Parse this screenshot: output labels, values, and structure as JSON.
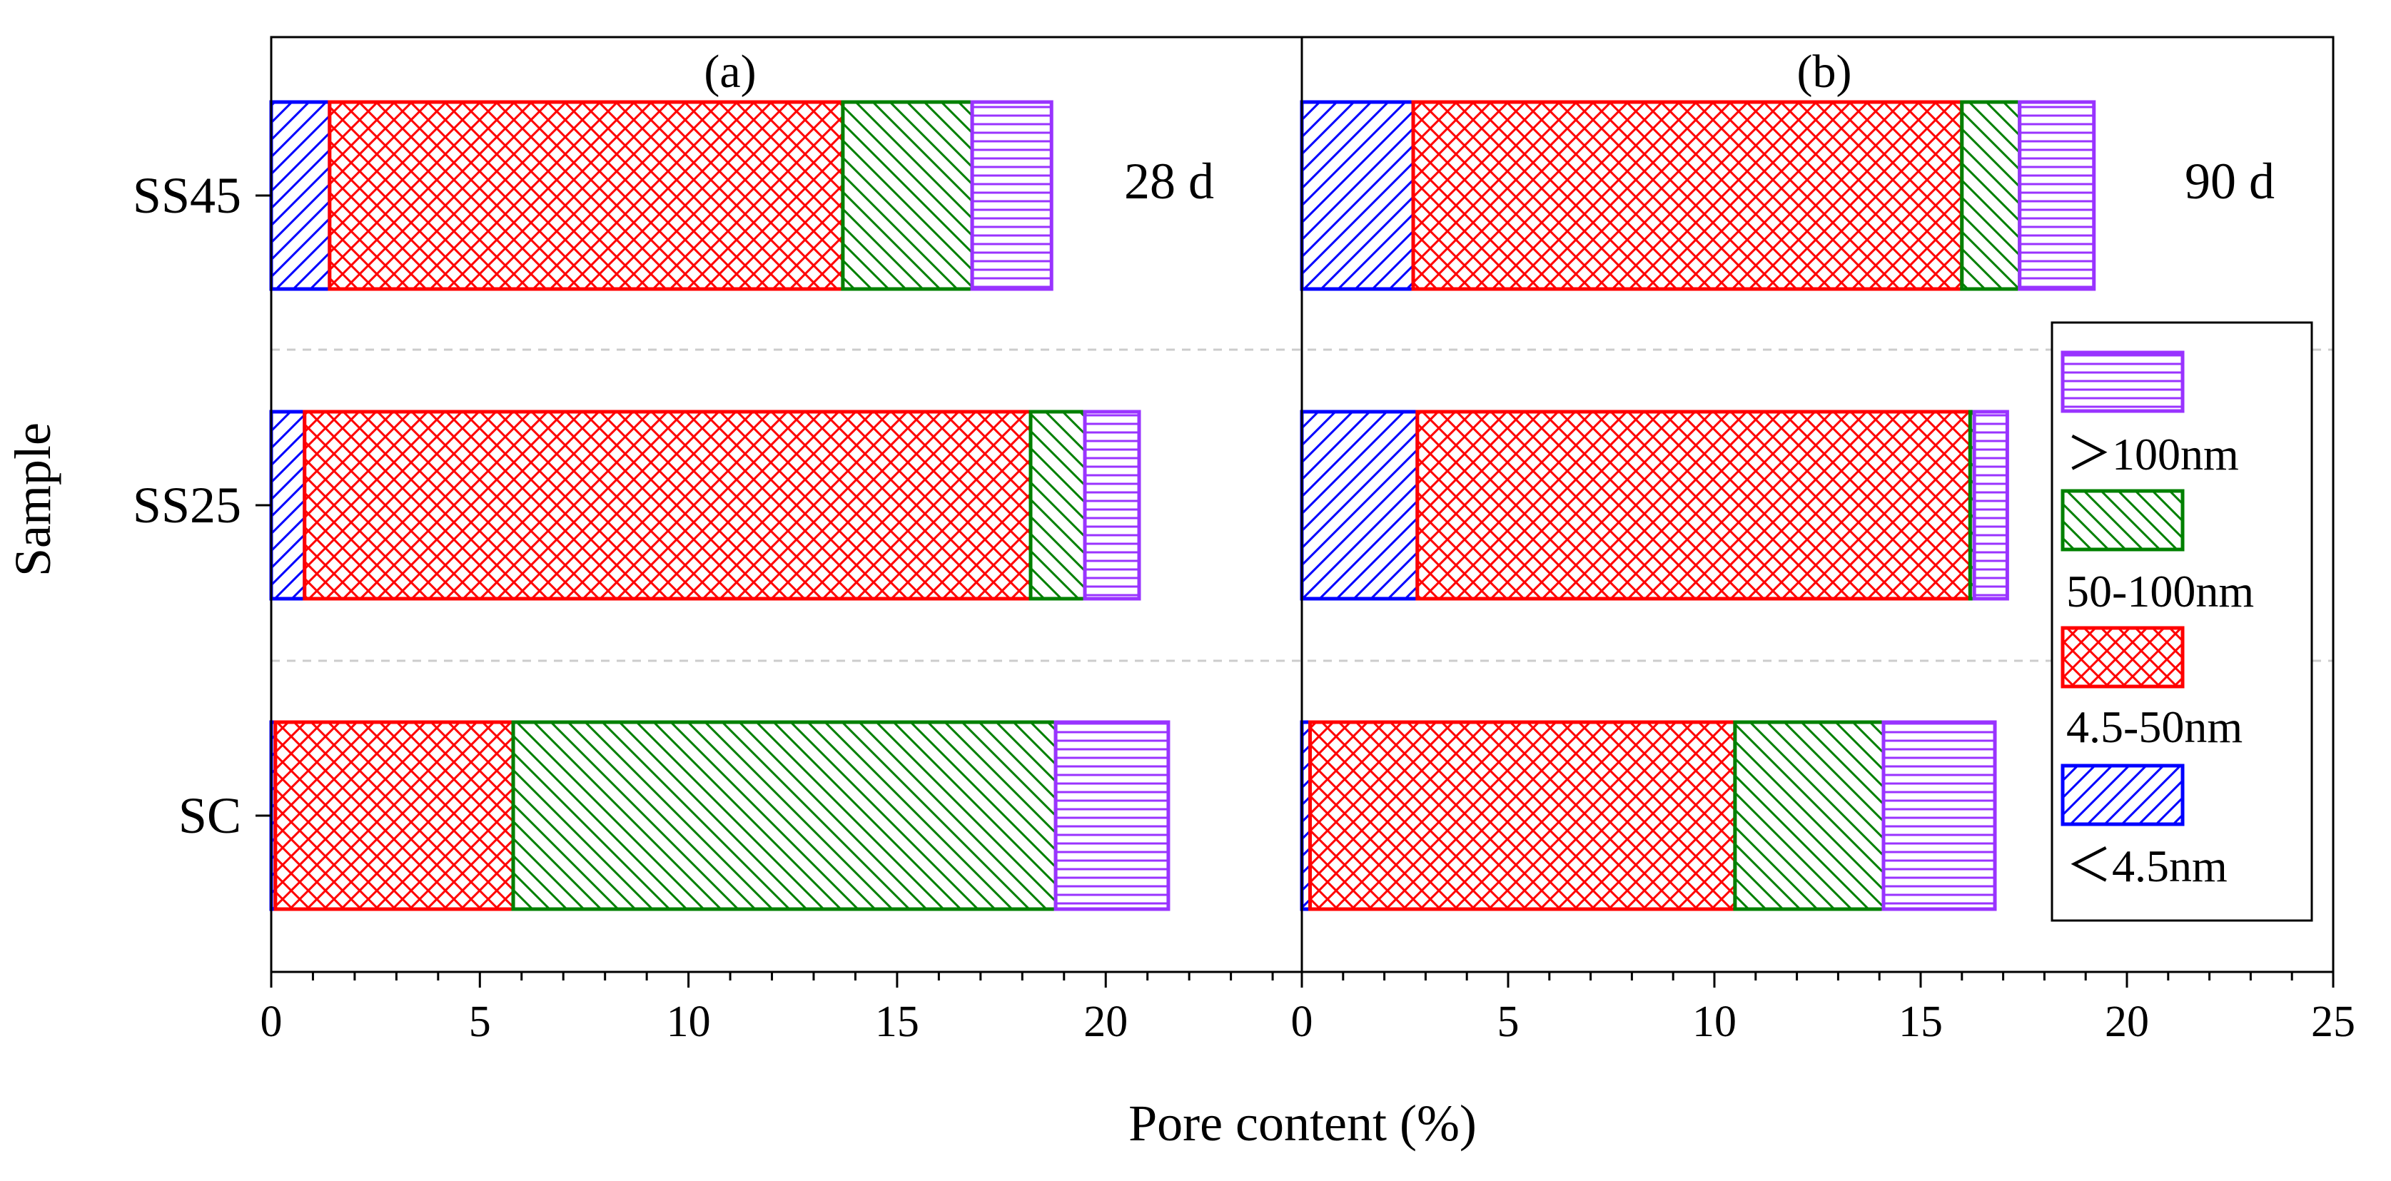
{
  "chart_data": {
    "type": "bar",
    "orientation": "horizontal",
    "stacked": true,
    "xlabel": "Pore content (%)",
    "ylabel": "Sample",
    "categories": [
      "SC",
      "SS25",
      "SS45"
    ],
    "series": [
      {
        "key": "lt45",
        "name": "＜4.5nm",
        "color": "#0000ff",
        "pattern": "diag-forward"
      },
      {
        "key": "r4550",
        "name": "4.5-50nm",
        "color": "#ff0000",
        "pattern": "crosshatch"
      },
      {
        "key": "r50100",
        "name": "50-100nm",
        "color": "#008000",
        "pattern": "diag-back"
      },
      {
        "key": "gt100",
        "name": "＞100nm",
        "color": "#9933ff",
        "pattern": "horizontal"
      }
    ],
    "panels": [
      {
        "label": "(a)",
        "age": "28 d",
        "xlim": [
          0,
          24.7
        ],
        "xticks": [
          0,
          5,
          10,
          15,
          20
        ],
        "values": {
          "SC": [
            0.1,
            5.7,
            13.0,
            2.7
          ],
          "SS25": [
            0.8,
            17.4,
            1.3,
            1.3
          ],
          "SS45": [
            1.4,
            12.3,
            3.1,
            1.9
          ]
        }
      },
      {
        "label": "(b)",
        "age": "90 d",
        "xlim": [
          0,
          25
        ],
        "xticks": [
          0,
          5,
          10,
          15,
          20,
          25
        ],
        "values": {
          "SC": [
            0.2,
            10.3,
            3.6,
            2.7
          ],
          "SS25": [
            2.8,
            13.4,
            0.1,
            0.8
          ],
          "SS45": [
            2.7,
            13.3,
            1.4,
            1.8
          ]
        }
      }
    ],
    "legend_position": "right of panel (b)"
  }
}
